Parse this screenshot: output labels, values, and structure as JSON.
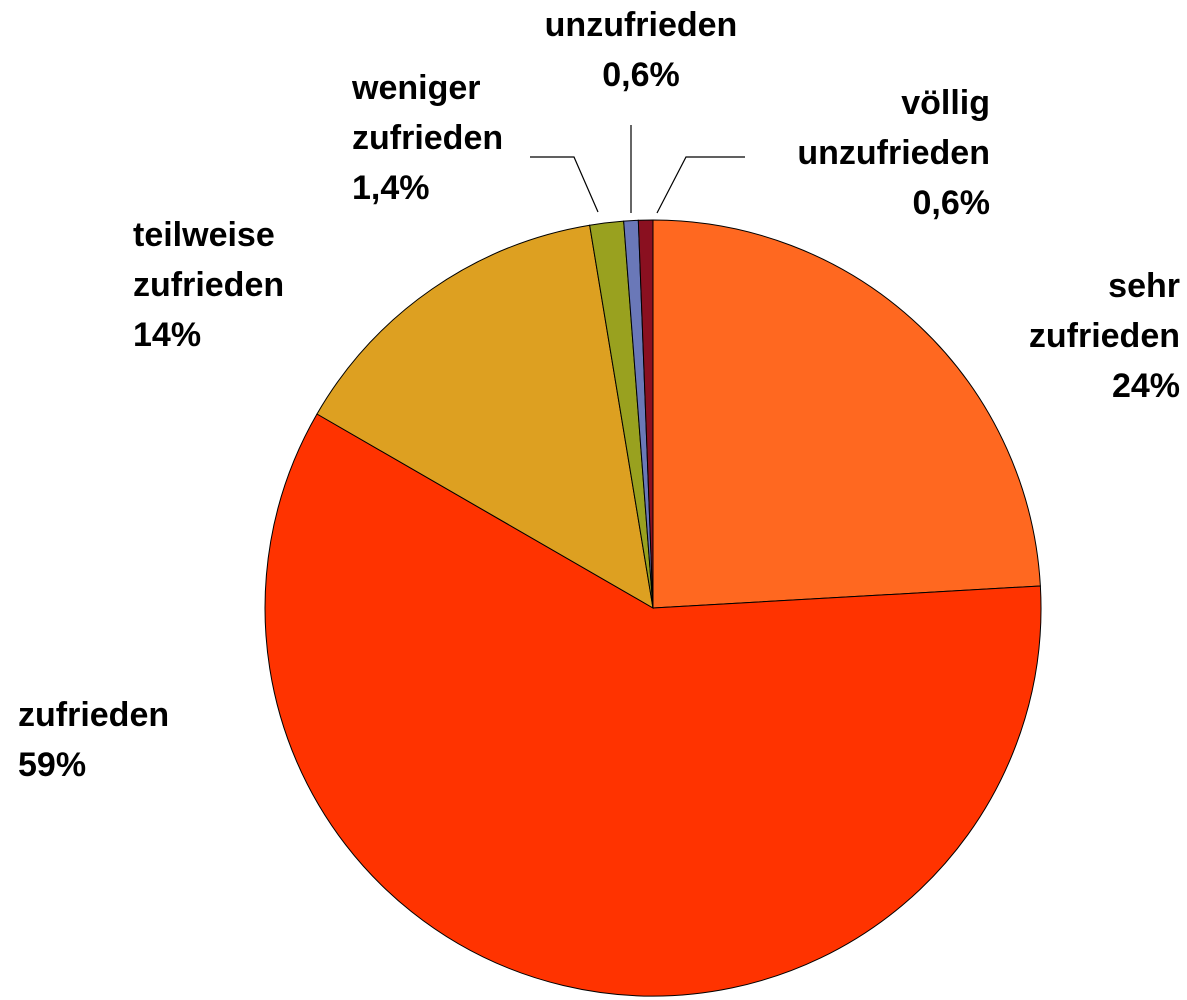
{
  "chart_data": {
    "type": "pie",
    "categories": [
      "sehr zufrieden",
      "zufrieden",
      "teilweise zufrieden",
      "weniger zufrieden",
      "unzufrieden",
      "völlig unzufrieden"
    ],
    "values": [
      24,
      59,
      14,
      1.4,
      0.6,
      0.6
    ],
    "value_labels": [
      "24%",
      "59%",
      "14%",
      "1,4%",
      "0,6%",
      "0,6%"
    ],
    "colors": [
      "#ff6820",
      "#ff3300",
      "#dda021",
      "#99a11f",
      "#6a78b8",
      "#8a1020"
    ]
  }
}
